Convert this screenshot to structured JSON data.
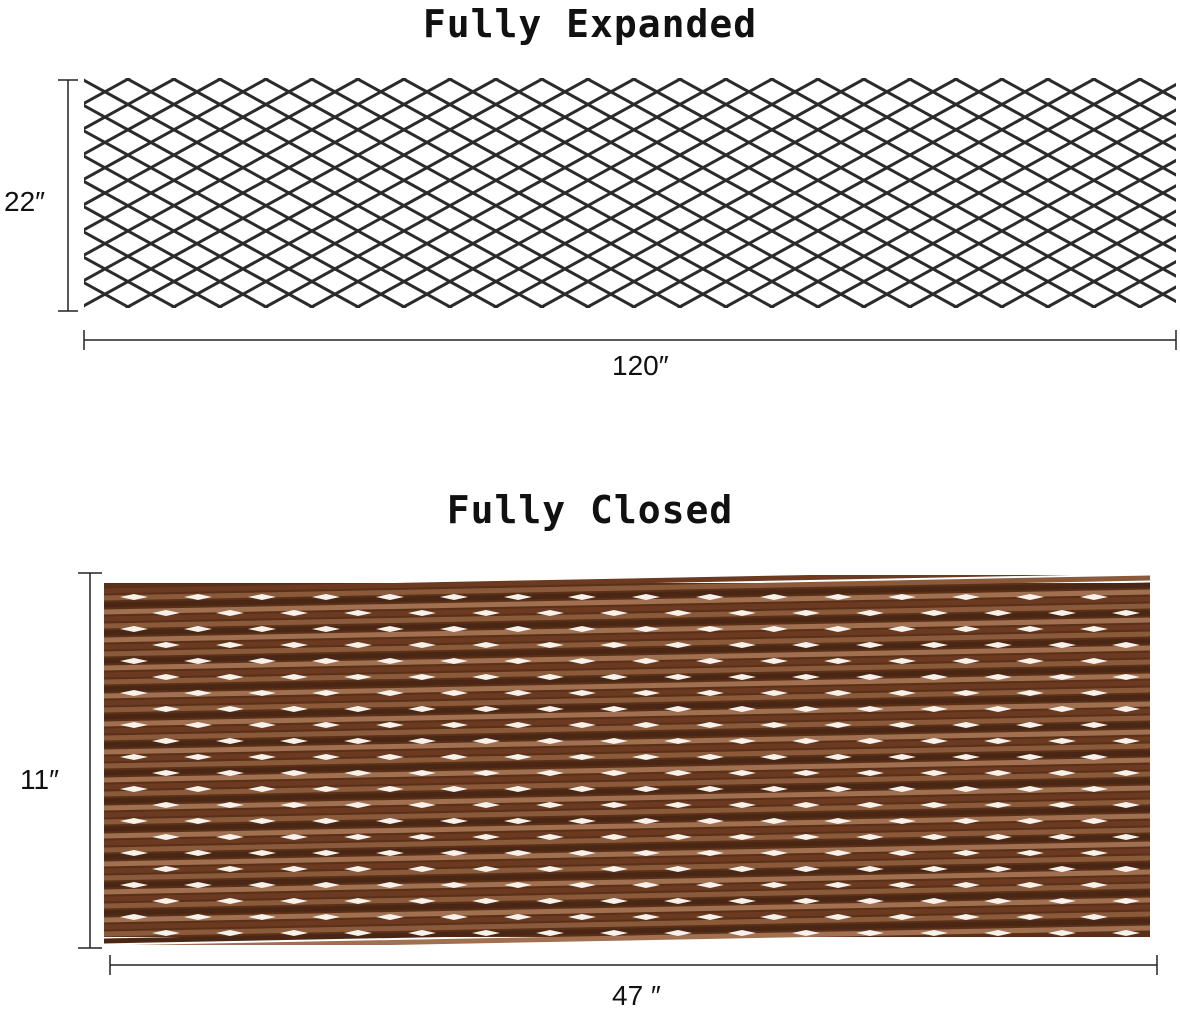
{
  "expanded": {
    "title": "Fully Expanded",
    "height_label": "22″",
    "width_label": "120″",
    "lattice_color": "#2b2b2b"
  },
  "closed": {
    "title": "Fully Closed",
    "height_label": "11″",
    "width_label": "47 ″",
    "wood_colors": [
      "#6b3a20",
      "#8a5a3a",
      "#4a2714",
      "#a07050"
    ]
  }
}
